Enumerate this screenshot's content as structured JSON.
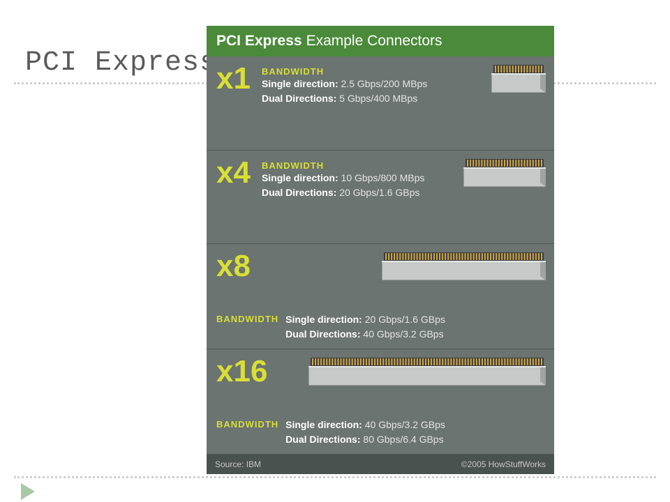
{
  "slide": {
    "title": "PCI Express"
  },
  "infographic": {
    "header_bold": "PCI Express",
    "header_light": "Example Connectors",
    "header_bg": "#4a8a3a",
    "body_bg": "#6b7470",
    "footer_bg": "#4a524f",
    "footer_text_color": "#c8c8c8",
    "label_color": "#d9df34",
    "lane_color": "#d9df34",
    "text_color": "#ffffff",
    "value_color": "#e4e4e4",
    "divider_color": "#4e5552",
    "connector_body": "#c5c9c8",
    "connector_pins": "#cfa84a",
    "connector_pins_bg": "#3a3a3a",
    "source": "Source: IBM",
    "copyright": "©2005 HowStuffWorks",
    "sections": [
      {
        "lane": "x1",
        "layout": "inline",
        "connector_width": 78,
        "bw_label": "BANDWIDTH",
        "single_label": "Single direction:",
        "single_value": "2.5 Gbps/200 MBps",
        "dual_label": "Dual Directions:",
        "dual_value": "5 Gbps/400 MBps"
      },
      {
        "lane": "x4",
        "layout": "inline",
        "connector_width": 118,
        "bw_label": "BANDWIDTH",
        "single_label": "Single direction:",
        "single_value": "10 Gbps/800 MBps",
        "dual_label": "Dual Directions:",
        "dual_value": "20 Gbps/1.6 GBps"
      },
      {
        "lane": "x8",
        "layout": "below",
        "connector_width": 235,
        "bw_label": "BANDWIDTH",
        "single_label": "Single direction:",
        "single_value": "20 Gbps/1.6 GBps",
        "dual_label": "Dual Directions:",
        "dual_value": "40 Gbps/3.2 GBps"
      },
      {
        "lane": "x16",
        "layout": "below",
        "connector_width": 340,
        "bw_label": "BANDWIDTH",
        "single_label": "Single direction:",
        "single_value": "40 Gbps/3.2 GBps",
        "dual_label": "Dual Directions:",
        "dual_value": "80 Gbps/6.4 GBps"
      }
    ]
  }
}
